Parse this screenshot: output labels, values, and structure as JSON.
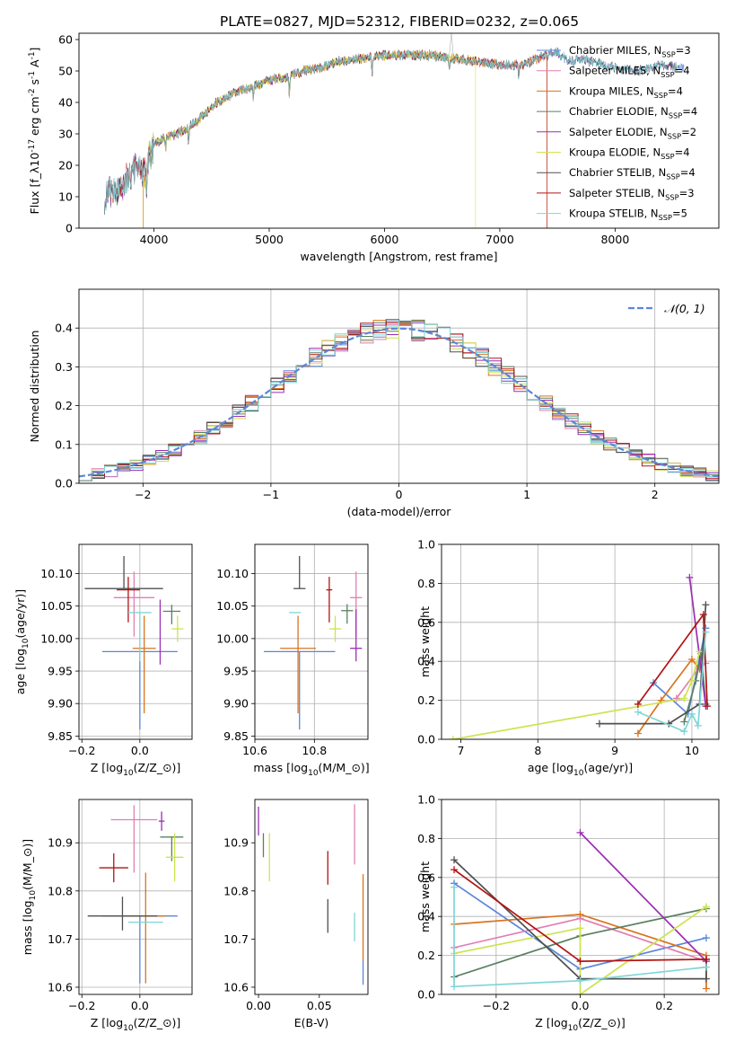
{
  "figure": {
    "title": "PLATE=0827, MJD=52312, FIBERID=0232, z=0.065"
  },
  "colors": {
    "Chabrier MILES": "#5b86d9",
    "Salpeter MILES": "#e07fb4",
    "Kroupa MILES": "#d9741d",
    "Chabrier ELODIE": "#5a8060",
    "Salpeter ELODIE": "#9a2fb4",
    "Kroupa ELODIE": "#cde34e",
    "Chabrier STELIB": "#505050",
    "Salpeter STELIB": "#b21414",
    "Kroupa STELIB": "#7ed6d6"
  },
  "chart_data": [
    {
      "id": "spectrum",
      "type": "line",
      "xlabel": "wavelength [Angstrom, rest frame]",
      "ylabel": "Flux [f$_\\lambda$10$^{-17}$ erg cm$^{-2}$ s$^{-1}$ A$^{-1}$]",
      "xlim": [
        3350,
        8900
      ],
      "ylim": [
        0,
        62
      ],
      "xticks": [
        4000,
        5000,
        6000,
        7000,
        8000
      ],
      "yticks": [
        0,
        10,
        20,
        30,
        40,
        50,
        60
      ],
      "grid": false,
      "legend_placement": "upper-right",
      "legend": [
        "Chabrier MILES, N$_{SSP}$=3",
        "Salpeter MILES, N$_{SSP}$=4",
        "Kroupa MILES, N$_{SSP}$=4",
        "Chabrier ELODIE, N$_{SSP}$=4",
        "Salpeter ELODIE, N$_{SSP}$=2",
        "Kroupa ELODIE, N$_{SSP}$=4",
        "Chabrier STELIB, N$_{SSP}$=4",
        "Salpeter STELIB, N$_{SSP}$=3",
        "Kroupa STELIB, N$_{SSP}$=5"
      ],
      "continuum": [
        [
          3570,
          10
        ],
        [
          3700,
          13
        ],
        [
          3850,
          19
        ],
        [
          3920,
          18
        ],
        [
          4000,
          27
        ],
        [
          4100,
          29
        ],
        [
          4200,
          30
        ],
        [
          4300,
          32
        ],
        [
          4400,
          35
        ],
        [
          4550,
          40
        ],
        [
          4700,
          43
        ],
        [
          4850,
          45
        ],
        [
          5000,
          47
        ],
        [
          5150,
          48
        ],
        [
          5300,
          50
        ],
        [
          5450,
          51
        ],
        [
          5600,
          53
        ],
        [
          5800,
          54
        ],
        [
          6000,
          55
        ],
        [
          6200,
          55
        ],
        [
          6400,
          55
        ],
        [
          6600,
          54
        ],
        [
          6800,
          53
        ],
        [
          7000,
          52
        ],
        [
          7200,
          52
        ],
        [
          7400,
          55
        ],
        [
          7500,
          56
        ],
        [
          7600,
          53
        ],
        [
          7700,
          54
        ],
        [
          8000,
          51
        ],
        [
          8200,
          50
        ],
        [
          8400,
          52
        ],
        [
          8600,
          51
        ]
      ],
      "absorptions": [
        [
          3934,
          -8
        ],
        [
          4102,
          -4
        ],
        [
          4300,
          -5
        ],
        [
          4861,
          -4
        ],
        [
          5175,
          -6
        ],
        [
          5893,
          -5
        ],
        [
          6563,
          -3
        ],
        [
          7165,
          -4
        ]
      ],
      "series": [
        {
          "color": "#5b86d9",
          "x": [
            3570,
            8600
          ],
          "cut": null
        },
        {
          "color": "#e07fb4",
          "x": [
            3570,
            8500
          ],
          "cut": null
        },
        {
          "color": "#d9741d",
          "x": [
            3570,
            7410
          ],
          "cut": [
            3905,
            7410
          ]
        },
        {
          "color": "#5a8060",
          "x": [
            3570,
            8550
          ],
          "cut": null
        },
        {
          "color": "#9a2fb4",
          "x": [
            3570,
            8500
          ],
          "cut": null
        },
        {
          "color": "#cde34e",
          "x": [
            3570,
            6790
          ],
          "cut": [
            3910,
            6790
          ]
        },
        {
          "color": "#505050",
          "x": [
            3570,
            8500
          ],
          "cut": null
        },
        {
          "color": "#b21414",
          "x": [
            3570,
            7410
          ],
          "cut": [
            null,
            7410
          ]
        },
        {
          "color": "#7ed6d6",
          "x": [
            3570,
            8450
          ],
          "cut": null
        }
      ]
    },
    {
      "id": "residuals",
      "type": "step-histogram",
      "xlabel": "(data-model)/error",
      "ylabel": "Normed distribution",
      "xlim": [
        -2.5,
        2.5
      ],
      "ylim": [
        0,
        0.5
      ],
      "xticks": [
        -2,
        -1,
        0,
        1,
        2
      ],
      "yticks": [
        0.0,
        0.1,
        0.2,
        0.3,
        0.4
      ],
      "grid": true,
      "legend_placement": "upper-right",
      "legend": [
        "$\\mathcal{N}(0, 1)$"
      ],
      "bin_edges_start": -2.5,
      "bin_width": 0.1,
      "reference_curve": {
        "type": "gaussian",
        "mu": 0,
        "sigma": 1,
        "color": "#5b86d9",
        "dashed": true
      },
      "series_colors": [
        "#5b86d9",
        "#e07fb4",
        "#d9741d",
        "#5a8060",
        "#9a2fb4",
        "#cde34e",
        "#505050",
        "#b21414",
        "#7ed6d6"
      ]
    },
    {
      "id": "age-vs-Z",
      "type": "errorbar",
      "xlabel": "Z [log$_{10}$($Z/Z_\\odot$)]",
      "ylabel": "age  [log$_{10}$($age/yr$)]",
      "xlim": [
        -0.21,
        0.18
      ],
      "ylim": [
        9.845,
        10.145
      ],
      "xticks": [
        -0.2,
        0.0
      ],
      "yticks": [
        9.85,
        9.9,
        9.95,
        10.0,
        10.05,
        10.1
      ],
      "grid": true,
      "points": [
        {
          "color": "#5b86d9",
          "x": 0.0,
          "y": 9.98,
          "xerr": 0.13,
          "yerr": [
            0.12,
            0.0
          ]
        },
        {
          "color": "#e07fb4",
          "x": -0.02,
          "y": 10.063,
          "xerr": 0.07,
          "yerr": [
            0.06,
            0.04
          ]
        },
        {
          "color": "#d9741d",
          "x": 0.015,
          "y": 9.985,
          "xerr": 0.04,
          "yerr": [
            0.1,
            0.05
          ]
        },
        {
          "color": "#5a8060",
          "x": 0.11,
          "y": 10.042,
          "xerr": 0.03,
          "yerr": [
            0.02,
            0.01
          ]
        },
        {
          "color": "#9a2fb4",
          "x": 0.07,
          "y": 10.045,
          "xerr": 0.0,
          "yerr": [
            0.085,
            0.015
          ]
        },
        {
          "color": "#cde34e",
          "x": 0.13,
          "y": 10.015,
          "xerr": 0.02,
          "yerr": [
            0.02,
            0.02
          ]
        },
        {
          "color": "#505050",
          "x": -0.055,
          "y": 10.077,
          "xerr": 0.135,
          "yerr": [
            0.0,
            0.05
          ]
        },
        {
          "color": "#b21414",
          "x": -0.04,
          "y": 10.075,
          "xerr": 0.04,
          "yerr": [
            0.05,
            0.02
          ]
        },
        {
          "color": "#7ed6d6",
          "x": 0.0,
          "y": 10.04,
          "xerr": 0.04,
          "yerr": [
            0.075,
            0.0
          ]
        }
      ]
    },
    {
      "id": "age-vs-mass",
      "type": "errorbar",
      "xlabel": "mass [log$_{10}$($M/M_\\odot$)]",
      "ylabel": "",
      "xlim": [
        10.6,
        10.98
      ],
      "ylim": [
        9.845,
        10.145
      ],
      "xticks": [
        10.6,
        10.8
      ],
      "yticks": [
        9.85,
        9.9,
        9.95,
        10.0,
        10.05,
        10.1
      ],
      "grid": true,
      "points": [
        {
          "color": "#5b86d9",
          "x": 10.75,
          "y": 9.98,
          "xerr": 0.12,
          "yerr": [
            0.12,
            0.0
          ]
        },
        {
          "color": "#e07fb4",
          "x": 10.94,
          "y": 10.063,
          "xerr": 0.02,
          "yerr": [
            0.06,
            0.04
          ]
        },
        {
          "color": "#d9741d",
          "x": 10.745,
          "y": 9.985,
          "xerr": 0.06,
          "yerr": [
            0.1,
            0.05
          ]
        },
        {
          "color": "#5a8060",
          "x": 10.91,
          "y": 10.043,
          "xerr": 0.02,
          "yerr": [
            0.02,
            0.01
          ]
        },
        {
          "color": "#9a2fb4",
          "x": 10.94,
          "y": 9.985,
          "xerr": 0.02,
          "yerr": [
            0.02,
            0.06
          ]
        },
        {
          "color": "#cde34e",
          "x": 10.87,
          "y": 10.015,
          "xerr": 0.02,
          "yerr": [
            0.02,
            0.02
          ]
        },
        {
          "color": "#505050",
          "x": 10.75,
          "y": 10.077,
          "xerr": 0.02,
          "yerr": [
            0.0,
            0.05
          ]
        },
        {
          "color": "#b21414",
          "x": 10.85,
          "y": 10.075,
          "xerr": 0.01,
          "yerr": [
            0.05,
            0.02
          ]
        },
        {
          "color": "#7ed6d6",
          "x": 10.735,
          "y": 10.04,
          "xerr": 0.02,
          "yerr": [
            0.0,
            0.0
          ]
        }
      ]
    },
    {
      "id": "weight-vs-age",
      "type": "line",
      "xlabel": "age  [log$_{10}$($age/yr$)]",
      "ylabel": "mass weight",
      "xlim": [
        6.75,
        10.35
      ],
      "ylim": [
        0,
        1
      ],
      "xticks": [
        7,
        8,
        9,
        10
      ],
      "yticks": [
        0.0,
        0.2,
        0.4,
        0.6,
        0.8,
        1.0
      ],
      "grid": true,
      "series": [
        {
          "color": "#5b86d9",
          "x": [
            9.5,
            9.95,
            10.18
          ],
          "y": [
            0.29,
            0.13,
            0.57
          ]
        },
        {
          "color": "#e07fb4",
          "x": [
            9.8,
            10.1,
            10.18
          ],
          "y": [
            0.21,
            0.37,
            0.39
          ]
        },
        {
          "color": "#d9741d",
          "x": [
            9.3,
            9.6,
            10.0,
            10.1
          ],
          "y": [
            0.03,
            0.2,
            0.41,
            0.36
          ]
        },
        {
          "color": "#5a8060",
          "x": [
            9.9,
            10.05,
            10.12,
            10.18
          ],
          "y": [
            0.09,
            0.3,
            0.44,
            0.18
          ]
        },
        {
          "color": "#9a2fb4",
          "x": [
            9.97,
            10.18
          ],
          "y": [
            0.83,
            0.17
          ]
        },
        {
          "color": "#cde34e",
          "x": [
            6.9,
            9.9,
            10.0,
            10.1
          ],
          "y": [
            0.0,
            0.21,
            0.3,
            0.45
          ]
        },
        {
          "color": "#505050",
          "x": [
            8.8,
            9.7,
            10.1,
            10.18
          ],
          "y": [
            0.08,
            0.08,
            0.18,
            0.69
          ]
        },
        {
          "color": "#b21414",
          "x": [
            9.3,
            10.15,
            10.2
          ],
          "y": [
            0.18,
            0.64,
            0.17
          ]
        },
        {
          "color": "#7ed6d6",
          "x": [
            9.3,
            9.9,
            10.0,
            10.08,
            10.18
          ],
          "y": [
            0.14,
            0.04,
            0.13,
            0.07,
            0.55
          ]
        }
      ]
    },
    {
      "id": "mass-vs-Z",
      "type": "errorbar",
      "xlabel": "Z [log$_{10}$($Z/Z_\\odot$)]",
      "ylabel": "mass [log$_{10}$($M/M_\\odot$)]",
      "xlim": [
        -0.21,
        0.18
      ],
      "ylim": [
        10.585,
        10.99
      ],
      "xticks": [
        -0.2,
        0.0
      ],
      "yticks": [
        10.6,
        10.7,
        10.8,
        10.9
      ],
      "grid": true,
      "points": [
        {
          "color": "#5b86d9",
          "x": 0.0,
          "y": 10.748,
          "xerr": 0.13,
          "yerr": [
            0.14,
            0.0
          ]
        },
        {
          "color": "#e07fb4",
          "x": -0.02,
          "y": 10.948,
          "xerr": 0.08,
          "yerr": [
            0.11,
            0.03
          ]
        },
        {
          "color": "#d9741d",
          "x": 0.02,
          "y": 10.748,
          "xerr": 0.07,
          "yerr": [
            0.14,
            0.09
          ]
        },
        {
          "color": "#5a8060",
          "x": 0.11,
          "y": 10.912,
          "xerr": 0.04,
          "yerr": [
            0.05,
            0.0
          ]
        },
        {
          "color": "#9a2fb4",
          "x": 0.075,
          "y": 10.945,
          "xerr": 0.01,
          "yerr": [
            0.02,
            0.02
          ]
        },
        {
          "color": "#cde34e",
          "x": 0.12,
          "y": 10.87,
          "xerr": 0.03,
          "yerr": [
            0.05,
            0.05
          ]
        },
        {
          "color": "#505050",
          "x": -0.06,
          "y": 10.748,
          "xerr": 0.12,
          "yerr": [
            0.03,
            0.04
          ]
        },
        {
          "color": "#b21414",
          "x": -0.09,
          "y": 10.848,
          "xerr": 0.05,
          "yerr": [
            0.03,
            0.03
          ]
        },
        {
          "color": "#7ed6d6",
          "x": 0.02,
          "y": 10.735,
          "xerr": 0.06,
          "yerr": [
            0.0,
            0.0
          ]
        }
      ]
    },
    {
      "id": "mass-vs-EBV",
      "type": "errorbar",
      "xlabel": "E(B-V)",
      "ylabel": "",
      "xlim": [
        -0.003,
        0.09
      ],
      "ylim": [
        10.585,
        10.99
      ],
      "xticks": [
        0.0,
        0.05
      ],
      "yticks": [
        10.6,
        10.7,
        10.8,
        10.9
      ],
      "grid": false,
      "points": [
        {
          "color": "#5b86d9",
          "x": 0.086,
          "y": 10.63,
          "xerr": 0,
          "yerr": [
            0.025,
            0.025
          ]
        },
        {
          "color": "#e07fb4",
          "x": 0.079,
          "y": 10.915,
          "xerr": 0,
          "yerr": [
            0.06,
            0.065
          ]
        },
        {
          "color": "#d9741d",
          "x": 0.086,
          "y": 10.745,
          "xerr": 0,
          "yerr": [
            0.09,
            0.09
          ]
        },
        {
          "color": "#5a8060",
          "x": 0.004,
          "y": 10.895,
          "xerr": 0,
          "yerr": [
            0.025,
            0.025
          ]
        },
        {
          "color": "#9a2fb4",
          "x": 0.0,
          "y": 10.945,
          "xerr": 0,
          "yerr": [
            0.03,
            0.03
          ]
        },
        {
          "color": "#cde34e",
          "x": 0.009,
          "y": 10.87,
          "xerr": 0,
          "yerr": [
            0.05,
            0.05
          ]
        },
        {
          "color": "#505050",
          "x": 0.057,
          "y": 10.748,
          "xerr": 0,
          "yerr": [
            0.035,
            0.035
          ]
        },
        {
          "color": "#b21414",
          "x": 0.057,
          "y": 10.848,
          "xerr": 0,
          "yerr": [
            0.035,
            0.035
          ]
        },
        {
          "color": "#7ed6d6",
          "x": 0.079,
          "y": 10.725,
          "xerr": 0,
          "yerr": [
            0.03,
            0.03
          ]
        }
      ]
    },
    {
      "id": "weight-vs-Z",
      "type": "line",
      "xlabel": "Z [log$_{10}$($Z/Z_\\odot$)]",
      "ylabel": "mass weight",
      "xlim": [
        -0.33,
        0.33
      ],
      "ylim": [
        0,
        1
      ],
      "xticks": [
        -0.2,
        0.0,
        0.2
      ],
      "yticks": [
        0.0,
        0.2,
        0.4,
        0.6,
        0.8,
        1.0
      ],
      "grid": true,
      "series": [
        {
          "color": "#5b86d9",
          "x": [
            -0.3,
            0.0,
            0.3
          ],
          "y": [
            0.57,
            0.13,
            0.29
          ]
        },
        {
          "color": "#e07fb4",
          "x": [
            -0.3,
            0.0,
            0.3
          ],
          "y": [
            0.24,
            0.39,
            0.17
          ]
        },
        {
          "color": "#d9741d",
          "x": [
            -0.3,
            0.0,
            0.3,
            0.3
          ],
          "y": [
            0.36,
            0.41,
            0.2,
            0.03
          ]
        },
        {
          "color": "#5a8060",
          "x": [
            -0.3,
            0.0,
            0.3
          ],
          "y": [
            0.09,
            0.3,
            0.44
          ]
        },
        {
          "color": "#9a2fb4",
          "x": [
            0.0,
            0.3
          ],
          "y": [
            0.83,
            0.17
          ]
        },
        {
          "color": "#cde34e",
          "x": [
            -0.3,
            0.0,
            0.0,
            0.3
          ],
          "y": [
            0.21,
            0.34,
            0.0,
            0.45
          ]
        },
        {
          "color": "#505050",
          "x": [
            -0.3,
            0.0,
            0.3,
            0.3
          ],
          "y": [
            0.69,
            0.08,
            0.08,
            0.18
          ]
        },
        {
          "color": "#b21414",
          "x": [
            -0.3,
            0.0,
            0.3
          ],
          "y": [
            0.64,
            0.17,
            0.18
          ]
        },
        {
          "color": "#7ed6d6",
          "x": [
            -0.3,
            -0.3,
            0.0,
            0.3
          ],
          "y": [
            0.55,
            0.04,
            0.07,
            0.14
          ]
        }
      ]
    }
  ]
}
